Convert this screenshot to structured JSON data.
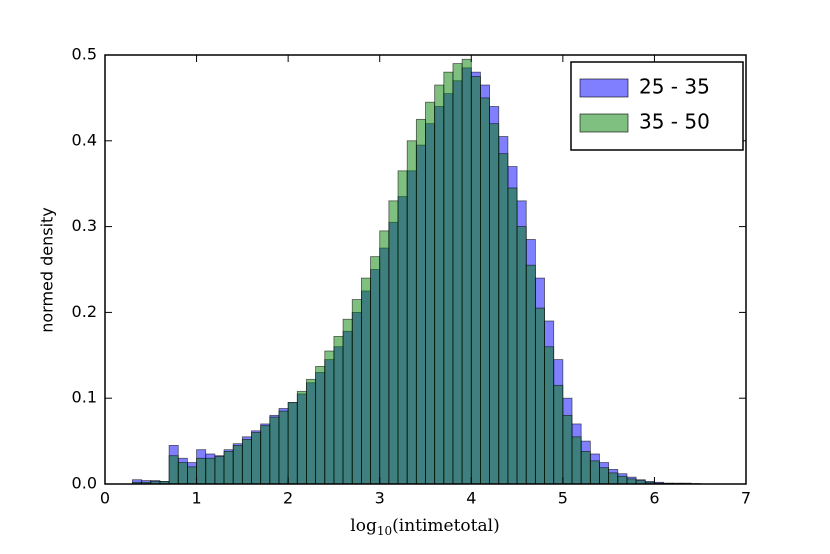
{
  "chart_data": {
    "type": "histogram",
    "xlabel": [
      "log",
      "10",
      "(intimetotal)"
    ],
    "ylabel": "normed density",
    "xlim": [
      0,
      7
    ],
    "ylim": [
      0,
      0.5
    ],
    "xticks": [
      0,
      1,
      2,
      3,
      4,
      5,
      6,
      7
    ],
    "yticks": [
      {
        "value": 0,
        "label": "0.0"
      },
      {
        "value": 0.1,
        "label": "0.1"
      },
      {
        "value": 0.2,
        "label": "0.2"
      },
      {
        "value": 0.3,
        "label": "0.3"
      },
      {
        "value": 0.4,
        "label": "0.4"
      },
      {
        "value": 0.5,
        "label": "0.5"
      }
    ],
    "legend": "upper right",
    "alpha": 0.5,
    "bins": [
      0.3,
      0.4,
      0.5,
      0.6,
      0.7,
      0.8,
      0.9,
      1.0,
      1.1,
      1.2,
      1.3,
      1.4,
      1.5,
      1.6,
      1.7,
      1.8,
      1.9,
      2.0,
      2.1,
      2.2,
      2.3,
      2.4,
      2.5,
      2.6,
      2.7,
      2.8,
      2.9,
      3.0,
      3.1,
      3.2,
      3.3,
      3.4,
      3.5,
      3.6,
      3.7,
      3.8,
      3.9,
      4.0,
      4.1,
      4.2,
      4.3,
      4.4,
      4.5,
      4.6,
      4.7,
      4.8,
      4.9,
      5.0,
      5.1,
      5.2,
      5.3,
      5.4,
      5.5,
      5.6,
      5.7,
      5.8,
      5.9,
      6.0,
      6.1,
      6.2,
      6.3,
      6.4,
      6.5
    ],
    "series": [
      {
        "name": "25 - 35",
        "color": "#0000ff",
        "values": [
          0.005,
          0.004,
          0.004,
          0.003,
          0.045,
          0.03,
          0.025,
          0.04,
          0.035,
          0.033,
          0.04,
          0.047,
          0.055,
          0.062,
          0.07,
          0.08,
          0.088,
          0.095,
          0.105,
          0.118,
          0.13,
          0.145,
          0.16,
          0.178,
          0.2,
          0.225,
          0.25,
          0.275,
          0.305,
          0.335,
          0.365,
          0.395,
          0.42,
          0.44,
          0.455,
          0.47,
          0.485,
          0.48,
          0.465,
          0.44,
          0.405,
          0.37,
          0.33,
          0.285,
          0.24,
          0.19,
          0.145,
          0.1,
          0.07,
          0.05,
          0.035,
          0.025,
          0.017,
          0.012,
          0.008,
          0.005,
          0.003,
          0.002,
          0.001,
          0.001,
          0.001,
          0.0005
        ]
      },
      {
        "name": "35 - 50",
        "color": "#008000",
        "values": [
          0.002,
          0.002,
          0.003,
          0.003,
          0.033,
          0.025,
          0.02,
          0.03,
          0.03,
          0.032,
          0.038,
          0.045,
          0.052,
          0.06,
          0.068,
          0.078,
          0.085,
          0.095,
          0.108,
          0.122,
          0.137,
          0.155,
          0.172,
          0.192,
          0.215,
          0.24,
          0.265,
          0.295,
          0.33,
          0.365,
          0.4,
          0.425,
          0.445,
          0.465,
          0.48,
          0.49,
          0.495,
          0.475,
          0.45,
          0.42,
          0.385,
          0.345,
          0.3,
          0.255,
          0.205,
          0.16,
          0.115,
          0.08,
          0.055,
          0.038,
          0.027,
          0.019,
          0.013,
          0.009,
          0.006,
          0.004,
          0.002,
          0.001,
          0.0008,
          0.0005,
          0.0003,
          0.0002
        ]
      }
    ]
  }
}
